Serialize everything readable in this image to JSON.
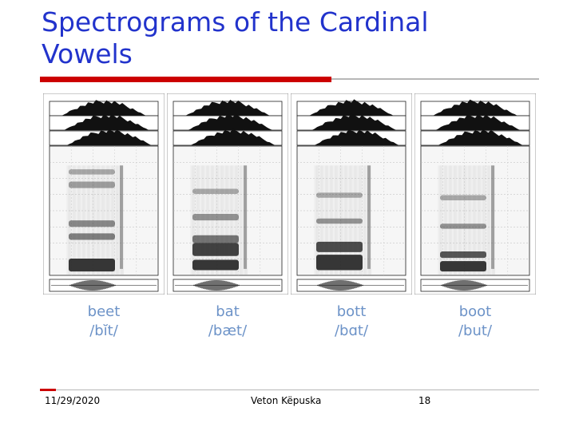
{
  "slide": {
    "title": "Spectrograms of the Cardinal Vowels",
    "colors": {
      "title": "#2233cc",
      "accent_rule": "#cc0000",
      "caption": "#6d93c8"
    }
  },
  "figure": {
    "panels": [
      {
        "word": "beet",
        "ipa": "/bĭt/"
      },
      {
        "word": "bat",
        "ipa": "/bæt/"
      },
      {
        "word": "bott",
        "ipa": "/bɑt/"
      },
      {
        "word": "boot",
        "ipa": "/but/"
      }
    ]
  },
  "footer": {
    "date": "11/29/2020",
    "author": "Veton Këpuska",
    "page": "18"
  }
}
